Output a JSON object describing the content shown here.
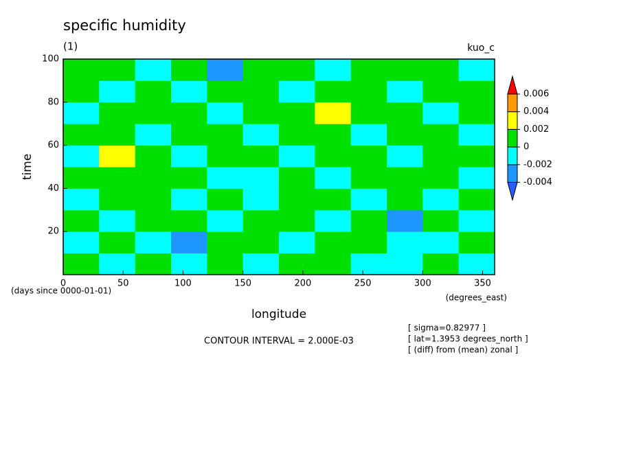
{
  "chart_data": {
    "type": "heatmap",
    "title": "specific humidity",
    "subtitle": "(1)",
    "run_label": "kuo_c",
    "x_label": "longitude",
    "y_label": "time",
    "x_units": "(degrees_east)",
    "y_units": "(days since 0000-01-01)",
    "contour_note": "CONTOUR INTERVAL = 2.000E-03",
    "info": [
      "[ sigma=0.82977 ]",
      "[ lat=1.3953 degrees_north ]",
      "[ (diff) from (mean) zonal ]"
    ],
    "x": [
      15,
      45,
      75,
      105,
      135,
      165,
      195,
      225,
      255,
      285,
      315,
      345
    ],
    "y": [
      5,
      15,
      25,
      35,
      45,
      55,
      65,
      75,
      85,
      95
    ],
    "z": [
      [
        0.001,
        -0.001,
        0.001,
        -0.001,
        0.001,
        -0.001,
        0.001,
        0.001,
        -0.001,
        -0.001,
        0.001,
        -0.001
      ],
      [
        -0.001,
        0.001,
        -0.001,
        -0.003,
        0.001,
        0.001,
        -0.001,
        0.001,
        0.001,
        -0.001,
        -0.001,
        0.001
      ],
      [
        0.001,
        -0.001,
        0.001,
        0.001,
        -0.001,
        0.001,
        0.001,
        -0.001,
        0.001,
        -0.003,
        0.001,
        -0.001
      ],
      [
        -0.001,
        0.001,
        0.001,
        -0.001,
        0.001,
        -0.001,
        0.001,
        0.001,
        -0.001,
        0.001,
        -0.001,
        0.001
      ],
      [
        0.001,
        0.001,
        0.001,
        0.001,
        -0.001,
        -0.001,
        0.001,
        -0.001,
        0.001,
        0.001,
        0.001,
        -0.001
      ],
      [
        -0.001,
        0.003,
        0.001,
        -0.001,
        0.001,
        0.001,
        -0.001,
        0.001,
        0.001,
        -0.001,
        0.001,
        0.001
      ],
      [
        0.001,
        0.001,
        -0.001,
        0.001,
        0.001,
        -0.001,
        0.001,
        0.001,
        -0.001,
        0.001,
        0.001,
        -0.001
      ],
      [
        -0.001,
        0.001,
        0.001,
        0.001,
        -0.001,
        0.001,
        0.001,
        0.003,
        0.001,
        0.001,
        -0.001,
        0.001
      ],
      [
        0.001,
        -0.001,
        0.001,
        -0.001,
        0.001,
        0.001,
        -0.001,
        0.001,
        0.001,
        -0.001,
        0.001,
        0.001
      ],
      [
        0.001,
        0.001,
        -0.001,
        0.001,
        -0.003,
        0.001,
        0.001,
        -0.001,
        0.001,
        0.001,
        0.001,
        -0.001
      ]
    ],
    "xlim": [
      0,
      360
    ],
    "xticks": [
      0,
      50,
      100,
      150,
      200,
      250,
      300,
      350
    ],
    "ylim": [
      0,
      100
    ],
    "yticks": [
      20,
      40,
      60,
      80,
      100
    ],
    "colorbar": {
      "levels": [
        -0.004,
        -0.002,
        0,
        0.002,
        0.004,
        0.006
      ],
      "colors": [
        "#2a5cff",
        "#1e96ff",
        "#00ffff",
        "#00e000",
        "#ffff00",
        "#ff9900",
        "#ff0000"
      ]
    }
  }
}
